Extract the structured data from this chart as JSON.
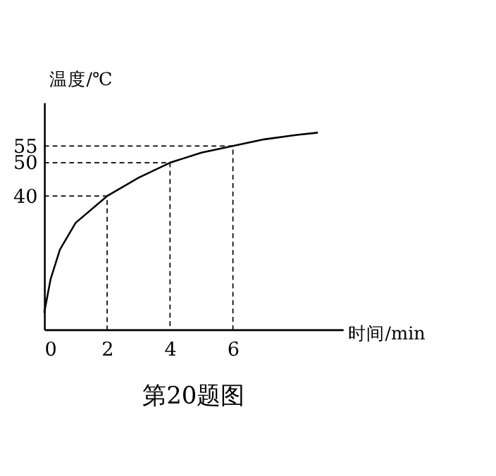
{
  "chart_data": {
    "type": "line",
    "title": "第20题图",
    "xlabel": "时间/min",
    "ylabel": "温度/℃",
    "xlim": [
      0,
      9.5
    ],
    "ylim": [
      0,
      68
    ],
    "xticks": [
      0,
      2,
      4,
      6
    ],
    "yticks": [
      40,
      50,
      55
    ],
    "grid": false,
    "marker": "none",
    "series": [
      {
        "line_style": "solid",
        "color": "#000000",
        "x": [
          0,
          0.2,
          0.5,
          1,
          2,
          3,
          4,
          5,
          6,
          7,
          8,
          8.7
        ],
        "values": [
          5,
          15,
          24,
          32,
          40,
          45.5,
          50,
          53,
          55,
          57,
          58.3,
          59
        ]
      },
      {
        "type": "line",
        "line_style": "dashed",
        "color": "#000000",
        "x": [
          0,
          2,
          2
        ],
        "values": [
          40,
          40,
          0
        ]
      },
      {
        "type": "line",
        "line_style": "dashed",
        "color": "#000000",
        "x": [
          0,
          4,
          4
        ],
        "values": [
          50,
          50,
          0
        ]
      },
      {
        "type": "line",
        "line_style": "dashed",
        "color": "#000000",
        "x": [
          0,
          6,
          6
        ],
        "values": [
          55,
          55,
          0
        ]
      }
    ]
  }
}
